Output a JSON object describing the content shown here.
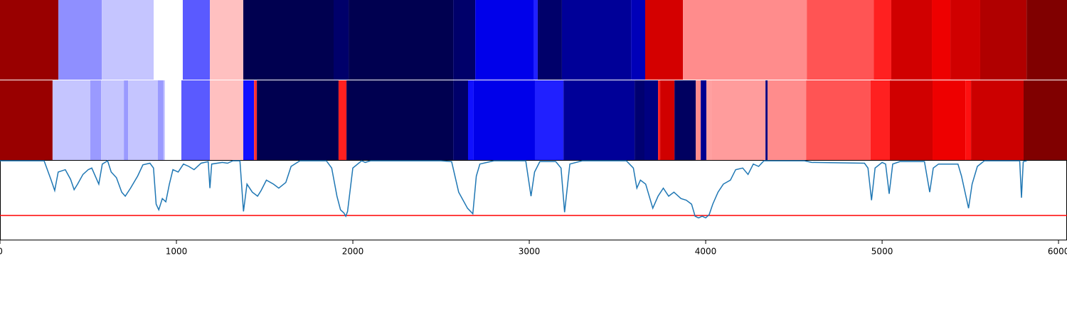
{
  "chart_data": {
    "type": "segmentation",
    "xlim": [
      0,
      6048
    ],
    "xticks": [
      0,
      1000,
      2000,
      3000,
      4000,
      5000,
      6000
    ],
    "ylim": [
      0,
      1
    ],
    "rows": [
      {
        "segments": [
          {
            "start": 0,
            "end": 331,
            "color": "#990000"
          },
          {
            "start": 331,
            "end": 577,
            "color": "#8f8fff"
          },
          {
            "start": 577,
            "end": 871,
            "color": "#c5c5ff"
          },
          {
            "start": 871,
            "end": 1036,
            "color": "#ffffff"
          },
          {
            "start": 1036,
            "end": 1190,
            "color": "#5a5aff"
          },
          {
            "start": 1190,
            "end": 1379,
            "color": "#ffc0c0"
          },
          {
            "start": 1379,
            "end": 1891,
            "color": "#000050"
          },
          {
            "start": 1891,
            "end": 1976,
            "color": "#00006a"
          },
          {
            "start": 1976,
            "end": 2569,
            "color": "#000050"
          },
          {
            "start": 2569,
            "end": 2694,
            "color": "#00006a"
          },
          {
            "start": 2694,
            "end": 3024,
            "color": "#0000ea"
          },
          {
            "start": 3024,
            "end": 3048,
            "color": "#2020ff"
          },
          {
            "start": 3048,
            "end": 3185,
            "color": "#00006a"
          },
          {
            "start": 3185,
            "end": 3577,
            "color": "#000098"
          },
          {
            "start": 3577,
            "end": 3657,
            "color": "#0000b8"
          },
          {
            "start": 3657,
            "end": 3871,
            "color": "#d40000"
          },
          {
            "start": 3871,
            "end": 4573,
            "color": "#ff8c8c"
          },
          {
            "start": 4573,
            "end": 4952,
            "color": "#ff5454"
          },
          {
            "start": 4952,
            "end": 5052,
            "color": "#ff2020"
          },
          {
            "start": 5052,
            "end": 5282,
            "color": "#d00000"
          },
          {
            "start": 5282,
            "end": 5387,
            "color": "#ee0000"
          },
          {
            "start": 5387,
            "end": 5556,
            "color": "#d00000"
          },
          {
            "start": 5556,
            "end": 5819,
            "color": "#b00000"
          },
          {
            "start": 5819,
            "end": 6048,
            "color": "#800000"
          }
        ]
      },
      {
        "segments": [
          {
            "start": 0,
            "end": 298,
            "color": "#990000"
          },
          {
            "start": 298,
            "end": 512,
            "color": "#c5c5ff"
          },
          {
            "start": 512,
            "end": 573,
            "color": "#9a9aff"
          },
          {
            "start": 573,
            "end": 702,
            "color": "#c5c5ff"
          },
          {
            "start": 702,
            "end": 726,
            "color": "#9a9aff"
          },
          {
            "start": 726,
            "end": 895,
            "color": "#c5c5ff"
          },
          {
            "start": 895,
            "end": 927,
            "color": "#9a9aff"
          },
          {
            "start": 927,
            "end": 935,
            "color": "#c5c5ff"
          },
          {
            "start": 935,
            "end": 1028,
            "color": "#ffffff"
          },
          {
            "start": 1028,
            "end": 1190,
            "color": "#5a5aff"
          },
          {
            "start": 1190,
            "end": 1379,
            "color": "#ffc0c0"
          },
          {
            "start": 1379,
            "end": 1440,
            "color": "#1010ff"
          },
          {
            "start": 1440,
            "end": 1456,
            "color": "#ff3030"
          },
          {
            "start": 1456,
            "end": 1919,
            "color": "#000050"
          },
          {
            "start": 1919,
            "end": 1964,
            "color": "#ff2020"
          },
          {
            "start": 1964,
            "end": 2569,
            "color": "#000050"
          },
          {
            "start": 2569,
            "end": 2653,
            "color": "#00006a"
          },
          {
            "start": 2653,
            "end": 2685,
            "color": "#1010ff"
          },
          {
            "start": 2685,
            "end": 3032,
            "color": "#0000ea"
          },
          {
            "start": 3032,
            "end": 3194,
            "color": "#2020ff"
          },
          {
            "start": 3194,
            "end": 3597,
            "color": "#000098"
          },
          {
            "start": 3597,
            "end": 3653,
            "color": "#000070"
          },
          {
            "start": 3653,
            "end": 3730,
            "color": "#000080"
          },
          {
            "start": 3730,
            "end": 3742,
            "color": "#ff2020"
          },
          {
            "start": 3742,
            "end": 3823,
            "color": "#d00000"
          },
          {
            "start": 3823,
            "end": 3944,
            "color": "#000060"
          },
          {
            "start": 3944,
            "end": 3972,
            "color": "#ff8c8c"
          },
          {
            "start": 3972,
            "end": 4004,
            "color": "#000090"
          },
          {
            "start": 4004,
            "end": 4036,
            "color": "#ffa0a0"
          },
          {
            "start": 4036,
            "end": 4339,
            "color": "#ff9c9c"
          },
          {
            "start": 4339,
            "end": 4351,
            "color": "#000080"
          },
          {
            "start": 4351,
            "end": 4569,
            "color": "#ff8c8c"
          },
          {
            "start": 4569,
            "end": 4935,
            "color": "#ff5454"
          },
          {
            "start": 4935,
            "end": 5044,
            "color": "#ff2020"
          },
          {
            "start": 5044,
            "end": 5286,
            "color": "#d00000"
          },
          {
            "start": 5286,
            "end": 5472,
            "color": "#ee0000"
          },
          {
            "start": 5472,
            "end": 5504,
            "color": "#ff1010"
          },
          {
            "start": 5504,
            "end": 5802,
            "color": "#cc0000"
          },
          {
            "start": 5802,
            "end": 6048,
            "color": "#800000"
          }
        ]
      }
    ],
    "line": {
      "color": "#1f77b4",
      "x": [
        0,
        250,
        290,
        310,
        330,
        370,
        400,
        420,
        440,
        470,
        500,
        520,
        560,
        580,
        610,
        630,
        660,
        690,
        710,
        740,
        780,
        810,
        850,
        870,
        885,
        900,
        920,
        940,
        960,
        980,
        1010,
        1040,
        1070,
        1100,
        1140,
        1180,
        1190,
        1200,
        1260,
        1290,
        1320,
        1360,
        1380,
        1400,
        1430,
        1460,
        1480,
        1510,
        1550,
        1580,
        1620,
        1650,
        1700,
        1850,
        1880,
        1910,
        1930,
        1950,
        1960,
        1970,
        2000,
        2050,
        2070,
        2100,
        2500,
        2560,
        2600,
        2650,
        2680,
        2700,
        2720,
        2760,
        2800,
        2980,
        3010,
        3030,
        3060,
        3150,
        3180,
        3200,
        3230,
        3300,
        3550,
        3590,
        3610,
        3630,
        3660,
        3700,
        3730,
        3760,
        3790,
        3820,
        3860,
        3890,
        3920,
        3940,
        3960,
        3980,
        4000,
        4020,
        4040,
        4070,
        4100,
        4140,
        4170,
        4210,
        4240,
        4270,
        4300,
        4330,
        4560,
        4600,
        4900,
        4920,
        4940,
        4960,
        5000,
        5020,
        5040,
        5060,
        5100,
        5240,
        5270,
        5290,
        5320,
        5430,
        5450,
        5490,
        5510,
        5540,
        5580,
        5780,
        5790,
        5800,
        5820
      ],
      "values": [
        0.99,
        0.99,
        0.75,
        0.62,
        0.85,
        0.88,
        0.76,
        0.63,
        0.7,
        0.82,
        0.88,
        0.9,
        0.7,
        0.95,
        0.99,
        0.85,
        0.78,
        0.6,
        0.55,
        0.65,
        0.8,
        0.94,
        0.96,
        0.9,
        0.45,
        0.38,
        0.52,
        0.48,
        0.7,
        0.88,
        0.85,
        0.95,
        0.92,
        0.88,
        0.96,
        0.98,
        0.65,
        0.95,
        0.97,
        0.96,
        0.99,
        0.99,
        0.36,
        0.7,
        0.6,
        0.55,
        0.62,
        0.75,
        0.7,
        0.65,
        0.72,
        0.92,
        0.99,
        0.99,
        0.9,
        0.55,
        0.38,
        0.34,
        0.3,
        0.36,
        0.9,
        0.99,
        0.97,
        0.99,
        0.99,
        0.98,
        0.6,
        0.4,
        0.33,
        0.8,
        0.95,
        0.97,
        0.99,
        0.99,
        0.55,
        0.85,
        0.98,
        0.98,
        0.9,
        0.35,
        0.95,
        0.99,
        0.99,
        0.9,
        0.65,
        0.75,
        0.7,
        0.4,
        0.55,
        0.65,
        0.55,
        0.6,
        0.52,
        0.5,
        0.45,
        0.3,
        0.28,
        0.3,
        0.28,
        0.32,
        0.45,
        0.6,
        0.7,
        0.75,
        0.88,
        0.9,
        0.82,
        0.95,
        0.92,
        0.99,
        0.99,
        0.97,
        0.96,
        0.9,
        0.5,
        0.9,
        0.97,
        0.95,
        0.58,
        0.95,
        0.98,
        0.98,
        0.6,
        0.9,
        0.95,
        0.95,
        0.8,
        0.4,
        0.7,
        0.92,
        0.99,
        0.99,
        0.53,
        0.98,
        0.99
      ]
    },
    "threshold": {
      "value": 0.31,
      "color": "#ff0000"
    }
  }
}
